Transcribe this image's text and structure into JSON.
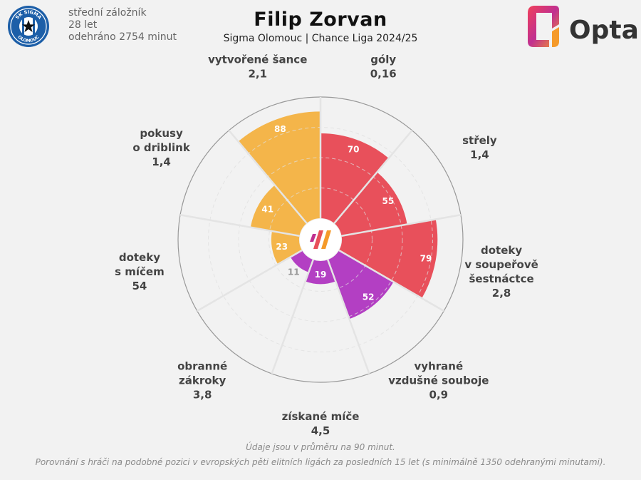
{
  "header": {
    "title": "Filip Zorvan",
    "subtitle": "Sigma Olomouc | Chance Liga 2024/25",
    "position": "střední záložník",
    "age": "28 let",
    "minutes": "odehráno 2754 minut",
    "club_logo_text_top": "SK SIGMA",
    "club_logo_text_bottom": "OLOMOUC",
    "brand": "Opta"
  },
  "colors": {
    "attack": "#e8505b",
    "defense": "#b33fc3",
    "possession": "#f4b54a",
    "background": "#f2f2f2",
    "grid": "#bdbdbd",
    "outer_ring": "#999999"
  },
  "chart_data": {
    "type": "polar-bar",
    "rmax": 100,
    "metrics": [
      {
        "label": [
          "góly"
        ],
        "value": "0,16",
        "percentile": 70,
        "group": "attack"
      },
      {
        "label": [
          "střely"
        ],
        "value": "1,4",
        "percentile": 55,
        "group": "attack"
      },
      {
        "label": [
          "doteky",
          "v soupeřově",
          "šestnáctce"
        ],
        "value": "2,8",
        "percentile": 79,
        "group": "attack"
      },
      {
        "label": [
          "vyhrané",
          "vzdušné souboje"
        ],
        "value": "0,9",
        "percentile": 52,
        "group": "defense"
      },
      {
        "label": [
          "získané míče"
        ],
        "value": "4,5",
        "percentile": 19,
        "group": "defense"
      },
      {
        "label": [
          "obranné",
          "zákroky"
        ],
        "value": "3,8",
        "percentile": 11,
        "group": "defense"
      },
      {
        "label": [
          "doteky",
          "s míčem"
        ],
        "value": "54",
        "percentile": 23,
        "group": "possession"
      },
      {
        "label": [
          "pokusy",
          "o driblink"
        ],
        "value": "1,4",
        "percentile": 41,
        "group": "possession"
      },
      {
        "label": [
          "vytvořené šance"
        ],
        "value": "2,1",
        "percentile": 88,
        "group": "possession"
      }
    ]
  },
  "footer": {
    "line1": "Údaje jsou v průměru na 90 minut.",
    "line2": "Porovnání s hráči na podobné pozici v evropských pěti elitních ligách za posledních 15 let (s minimálně 1350 odehranými minutami)."
  }
}
